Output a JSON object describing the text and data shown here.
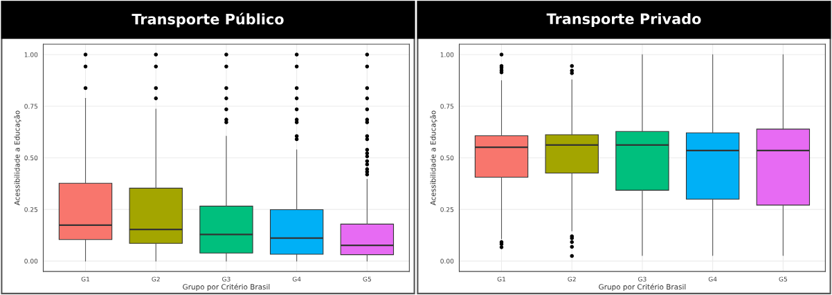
{
  "chart_data": [
    {
      "type": "box",
      "title": "Transporte Público",
      "xlabel": "Grupo por Critério Brasil",
      "ylabel": "Acessibilidade a Educação",
      "categories": [
        "G1",
        "G2",
        "G3",
        "G4",
        "G5"
      ],
      "colors": [
        "#f8766d",
        "#a3a500",
        "#00bf7d",
        "#00b0f6",
        "#e76bf3"
      ],
      "ylim": [
        -0.05,
        1.05
      ],
      "yticks": [
        {
          "value": 0,
          "label": "0.00"
        },
        {
          "value": 0.25,
          "label": "0.25"
        },
        {
          "value": 0.5,
          "label": "0.50"
        },
        {
          "value": 0.75,
          "label": "0.75"
        },
        {
          "value": 1,
          "label": "1.00"
        }
      ],
      "grid": true,
      "boxes": [
        {
          "low": 0,
          "q1": 0.104,
          "median": 0.174,
          "q3": 0.377,
          "high": 0.788,
          "outliers": [
            1.0,
            0.942,
            0.838
          ]
        },
        {
          "low": 0,
          "q1": 0.086,
          "median": 0.153,
          "q3": 0.353,
          "high": 0.736,
          "outliers": [
            1.0,
            0.942,
            0.838,
            0.788
          ]
        },
        {
          "low": 0,
          "q1": 0.039,
          "median": 0.129,
          "q3": 0.266,
          "high": 0.605,
          "outliers": [
            1.0,
            0.942,
            0.838,
            0.788,
            0.735,
            0.685,
            0.672
          ]
        },
        {
          "low": 0,
          "q1": 0.033,
          "median": 0.111,
          "q3": 0.249,
          "high": 0.539,
          "outliers": [
            1.0,
            0.942,
            0.838,
            0.788,
            0.735,
            0.685,
            0.672,
            0.605,
            0.59
          ]
        },
        {
          "low": 0,
          "q1": 0.031,
          "median": 0.076,
          "q3": 0.179,
          "high": 0.396,
          "outliers": [
            1.0,
            0.942,
            0.838,
            0.788,
            0.735,
            0.685,
            0.672,
            0.605,
            0.59,
            0.539,
            0.522,
            0.507,
            0.484,
            0.468,
            0.445,
            0.432,
            0.419
          ]
        }
      ]
    },
    {
      "type": "box",
      "title": "Transporte Privado",
      "xlabel": "Grupo por Critério Brasil",
      "ylabel": "Acessibilidade a Educação",
      "categories": [
        "G1",
        "G2",
        "G3",
        "G4",
        "G5"
      ],
      "colors": [
        "#f8766d",
        "#a3a500",
        "#00bf7d",
        "#00b0f6",
        "#e76bf3"
      ],
      "ylim": [
        -0.05,
        1.05
      ],
      "yticks": [
        {
          "value": 0,
          "label": "0.00"
        },
        {
          "value": 0.25,
          "label": "0.25"
        },
        {
          "value": 0.5,
          "label": "0.50"
        },
        {
          "value": 0.75,
          "label": "0.75"
        },
        {
          "value": 1,
          "label": "1.00"
        }
      ],
      "grid": true,
      "boxes": [
        {
          "low": 0.108,
          "q1": 0.406,
          "median": 0.551,
          "q3": 0.607,
          "high": 0.874,
          "outliers": [
            1.0,
            0.945,
            0.936,
            0.924,
            0.914,
            0.092,
            0.082,
            0.067
          ]
        },
        {
          "low": 0.146,
          "q1": 0.426,
          "median": 0.562,
          "q3": 0.612,
          "high": 0.878,
          "outliers": [
            0.945,
            0.922,
            0.91,
            0.12,
            0.111,
            0.092,
            0.069,
            0.025
          ]
        },
        {
          "low": 0.027,
          "q1": 0.343,
          "median": 0.562,
          "q3": 0.628,
          "high": 1.0
        },
        {
          "low": 0.027,
          "q1": 0.3,
          "median": 0.535,
          "q3": 0.621,
          "high": 1.0
        },
        {
          "low": 0.027,
          "q1": 0.271,
          "median": 0.535,
          "q3": 0.639,
          "high": 1.0
        }
      ]
    }
  ]
}
